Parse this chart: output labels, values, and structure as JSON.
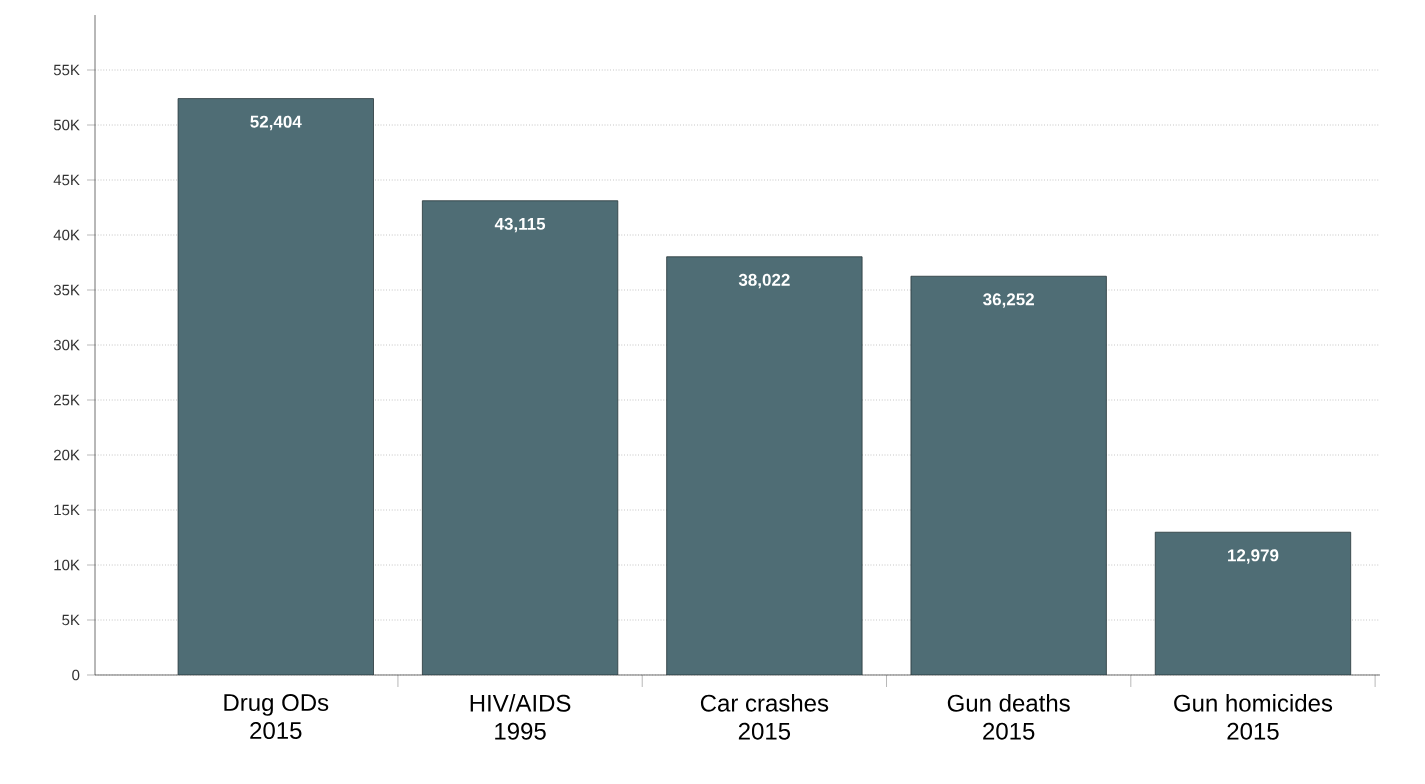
{
  "chart_data": {
    "type": "bar",
    "categories": [
      "Drug ODs 2015",
      "HIV/AIDS 1995",
      "Car crashes 2015",
      "Gun deaths 2015",
      "Gun homicides 2015"
    ],
    "values": [
      52404,
      43115,
      38022,
      36252,
      12979
    ],
    "value_labels": [
      "52,404",
      "43,115",
      "38,022",
      "36,252",
      "12,979"
    ],
    "color": "#4f6d75",
    "ylim": [
      0,
      60000
    ],
    "yticks": [
      0,
      {
        "value": 5000,
        "label": "5K"
      },
      {
        "value": 10000,
        "label": "10K"
      },
      {
        "value": 15000,
        "label": "15K"
      },
      {
        "value": 20000,
        "label": "20K"
      },
      {
        "value": 25000,
        "label": "25K"
      },
      {
        "value": 30000,
        "label": "30K"
      },
      {
        "value": 35000,
        "label": "35K"
      },
      {
        "value": 40000,
        "label": "40K"
      },
      {
        "value": 45000,
        "label": "45K"
      },
      {
        "value": 50000,
        "label": "50K"
      },
      {
        "value": 55000,
        "label": "55K"
      }
    ],
    "grid": "y"
  }
}
